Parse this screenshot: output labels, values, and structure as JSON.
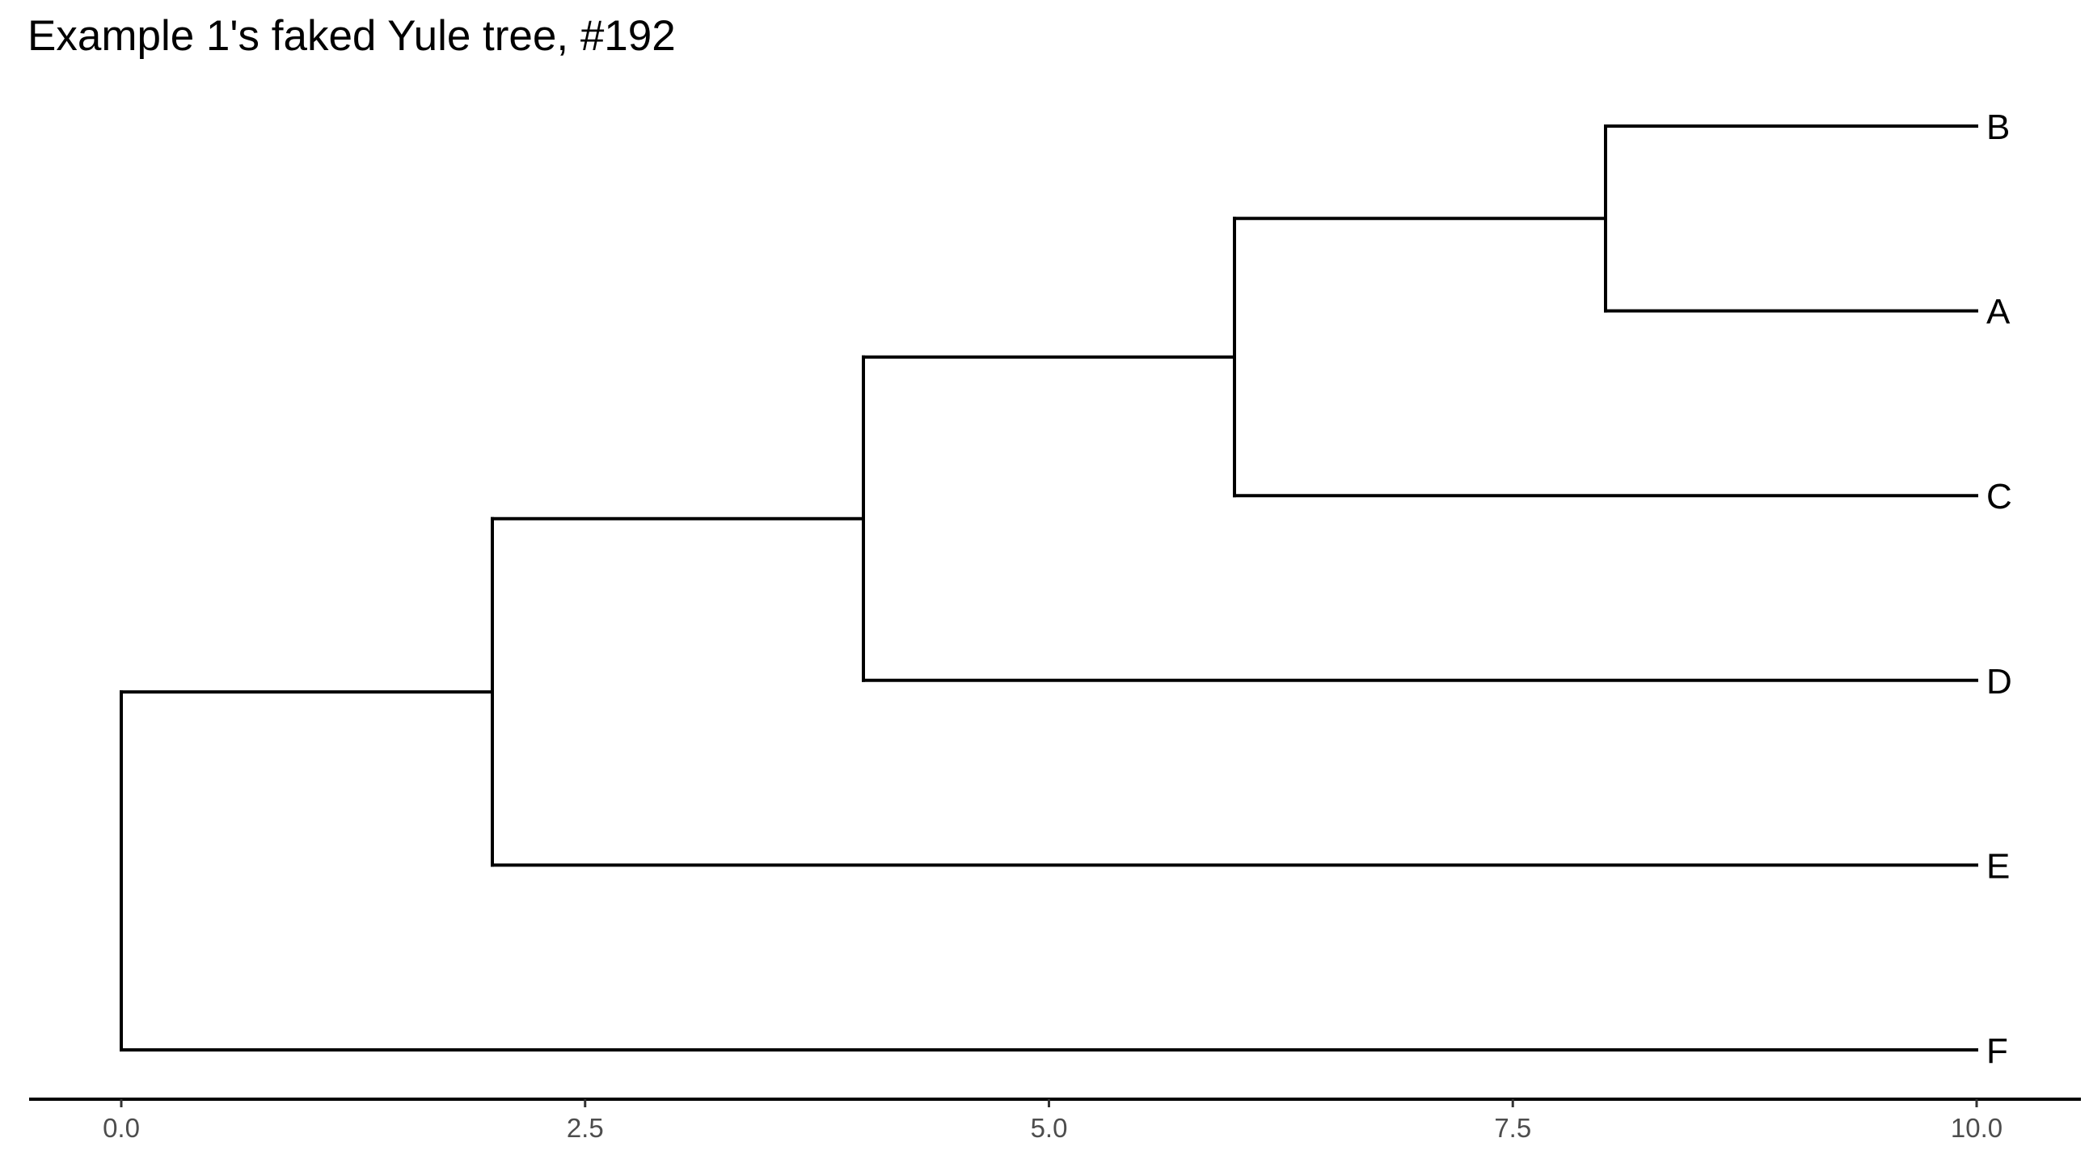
{
  "title": "Example 1's faked Yule tree, #192",
  "tree": {
    "tips": [
      {
        "label": "B",
        "order": 6,
        "depth": 10
      },
      {
        "label": "A",
        "order": 5,
        "depth": 10
      },
      {
        "label": "C",
        "order": 4,
        "depth": 10
      },
      {
        "label": "D",
        "order": 3,
        "depth": 10
      },
      {
        "label": "E",
        "order": 2,
        "depth": 10
      },
      {
        "label": "F",
        "order": 1,
        "depth": 10
      }
    ],
    "internal_nodes": [
      {
        "id": "n_root",
        "depth": 0,
        "children": [
          "n_ABCDE",
          "F"
        ]
      },
      {
        "id": "n_ABCDE",
        "depth": 2,
        "children": [
          "n_ABCD",
          "E"
        ]
      },
      {
        "id": "n_ABCD",
        "depth": 4,
        "children": [
          "n_ABC",
          "D"
        ]
      },
      {
        "id": "n_ABC",
        "depth": 6,
        "children": [
          "n_AB",
          "C"
        ]
      },
      {
        "id": "n_AB",
        "depth": 8,
        "children": [
          "B",
          "A"
        ]
      }
    ]
  },
  "axis": {
    "min": 0,
    "max": 10,
    "ticks": [
      "0.0",
      "2.5",
      "5.0",
      "7.5",
      "10.0"
    ]
  }
}
